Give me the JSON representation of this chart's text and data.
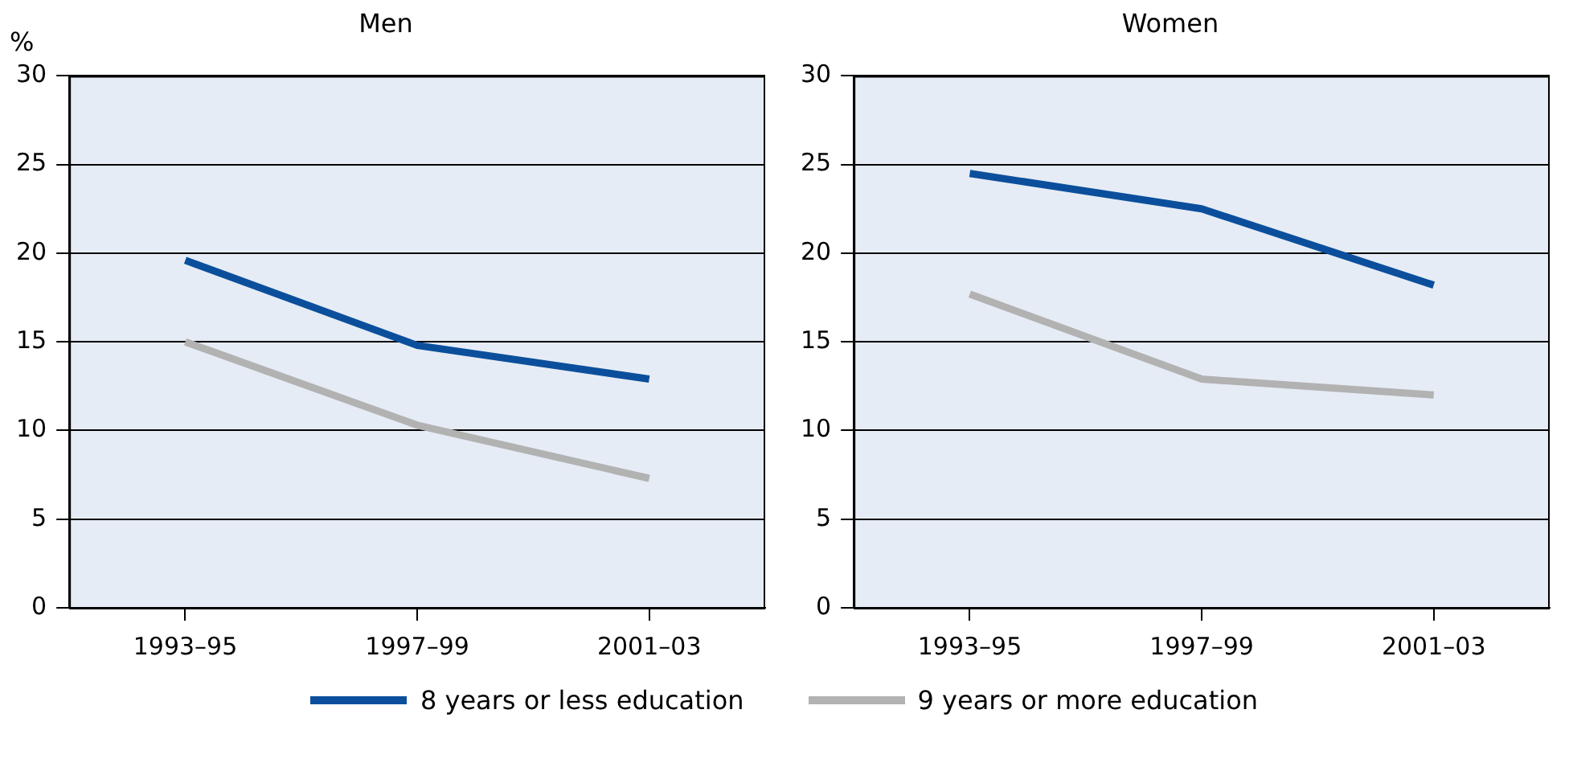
{
  "chart_data": [
    {
      "type": "line",
      "title": "Men",
      "ylabel": "%",
      "categories": [
        "1993–95",
        "1997–99",
        "2001–03"
      ],
      "ylim": [
        0,
        30
      ],
      "yticks": [
        0,
        5,
        10,
        15,
        20,
        25,
        30
      ],
      "grid": "y",
      "legend": "bottom",
      "marker": "none",
      "line_style": "solid",
      "series": [
        {
          "name": "8 years or less education",
          "color": "#0b4f9c",
          "values": [
            19.6,
            14.8,
            12.9
          ]
        },
        {
          "name": "9 years or more education",
          "color": "#b2b2b2",
          "values": [
            15.0,
            10.3,
            7.3
          ]
        }
      ]
    },
    {
      "type": "line",
      "title": "Women",
      "categories": [
        "1993–95",
        "1997–99",
        "2001–03"
      ],
      "ylim": [
        0,
        30
      ],
      "yticks": [
        0,
        5,
        10,
        15,
        20,
        25,
        30
      ],
      "grid": "y",
      "marker": "none",
      "line_style": "solid",
      "series": [
        {
          "color": "#0b4f9c",
          "values": [
            24.5,
            22.5,
            18.2
          ]
        },
        {
          "color": "#b2b2b2",
          "values": [
            17.7,
            12.9,
            12.0
          ]
        }
      ]
    }
  ]
}
